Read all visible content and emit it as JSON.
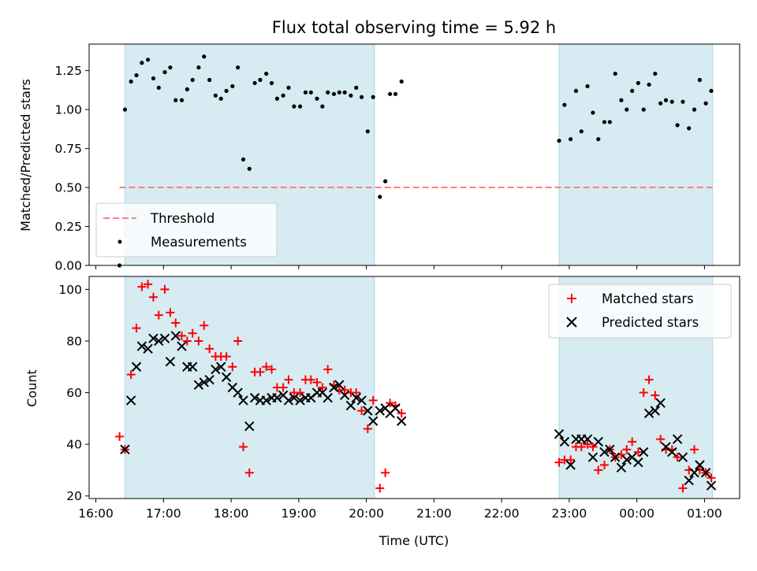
{
  "figure": {
    "title": "Flux total observing time = 5.92 h",
    "xlabel": "Time (UTC)",
    "top_ylabel": "Matched/Predicted stars",
    "bottom_ylabel": "Count"
  },
  "legend_top": {
    "threshold_label": "Threshold",
    "measurements_label": "Measurements"
  },
  "legend_bottom": {
    "matched_label": "Matched stars",
    "predicted_label": "Predicted stars"
  },
  "colors": {
    "shade": "#add8e6",
    "threshold": "#ff7f7f",
    "matched": "#ff0000",
    "predicted": "#000000",
    "measurements": "#000000"
  },
  "chart_data": [
    {
      "type": "scatter",
      "ylabel": "Matched/Predicted stars",
      "ylim": [
        0,
        1.42
      ],
      "yticks": [
        "0.00",
        "0.25",
        "0.50",
        "0.75",
        "1.00",
        "1.25"
      ],
      "xlim_hours": [
        15.9,
        25.52
      ],
      "threshold": 0.5,
      "threshold_span_hours": [
        16.35,
        25.12
      ],
      "shaded_intervals_hours": [
        [
          16.43,
          20.12
        ],
        [
          22.85,
          25.12
        ]
      ],
      "measurements": {
        "x_hours": [
          16.35,
          16.43,
          16.52,
          16.6,
          16.68,
          16.77,
          16.85,
          16.93,
          17.02,
          17.1,
          17.18,
          17.27,
          17.35,
          17.43,
          17.52,
          17.6,
          17.68,
          17.77,
          17.85,
          17.93,
          18.02,
          18.1,
          18.18,
          18.27,
          18.35,
          18.43,
          18.52,
          18.6,
          18.68,
          18.77,
          18.85,
          18.93,
          19.02,
          19.1,
          19.18,
          19.27,
          19.35,
          19.43,
          19.52,
          19.6,
          19.68,
          19.77,
          19.85,
          19.93,
          20.02,
          20.1,
          20.2,
          20.28,
          20.35,
          20.43,
          20.52,
          22.85,
          22.93,
          23.02,
          23.1,
          23.18,
          23.27,
          23.35,
          23.43,
          23.52,
          23.6,
          23.68,
          23.77,
          23.85,
          23.93,
          24.02,
          24.1,
          24.18,
          24.27,
          24.35,
          24.43,
          24.52,
          24.6,
          24.68,
          24.77,
          24.85,
          24.93,
          25.02,
          25.1
        ],
        "y": [
          0.0,
          1.0,
          1.18,
          1.22,
          1.3,
          1.32,
          1.2,
          1.14,
          1.24,
          1.27,
          1.06,
          1.06,
          1.13,
          1.19,
          1.27,
          1.34,
          1.19,
          1.09,
          1.07,
          1.12,
          1.15,
          1.27,
          0.68,
          0.62,
          1.17,
          1.19,
          1.23,
          1.17,
          1.07,
          1.09,
          1.14,
          1.02,
          1.02,
          1.11,
          1.11,
          1.07,
          1.02,
          1.11,
          1.1,
          1.11,
          1.11,
          1.09,
          1.14,
          1.08,
          0.86,
          1.08,
          0.44,
          0.54,
          1.1,
          1.1,
          1.18,
          0.8,
          1.03,
          0.81,
          1.12,
          0.86,
          1.15,
          0.98,
          0.81,
          0.92,
          0.92,
          1.23,
          1.06,
          1.0,
          1.12,
          1.17,
          1.0,
          1.16,
          1.23,
          1.04,
          1.06,
          1.05,
          0.9,
          1.05,
          0.88,
          1.0,
          1.19,
          1.04,
          1.12
        ]
      }
    },
    {
      "type": "scatter",
      "ylabel": "Count",
      "xlabel": "Time (UTC)",
      "ylim": [
        19,
        105
      ],
      "yticks": [
        "20",
        "40",
        "60",
        "80",
        "100"
      ],
      "xticks": [
        {
          "h": 16,
          "label": "16:00"
        },
        {
          "h": 17,
          "label": "17:00"
        },
        {
          "h": 18,
          "label": "18:00"
        },
        {
          "h": 19,
          "label": "19:00"
        },
        {
          "h": 20,
          "label": "20:00"
        },
        {
          "h": 21,
          "label": "21:00"
        },
        {
          "h": 22,
          "label": "22:00"
        },
        {
          "h": 23,
          "label": "23:00"
        },
        {
          "h": 24,
          "label": "00:00"
        },
        {
          "h": 25,
          "label": "01:00"
        }
      ],
      "series": [
        {
          "name": "Matched stars",
          "marker": "+",
          "x_hours": [
            16.35,
            16.43,
            16.52,
            16.6,
            16.68,
            16.77,
            16.85,
            16.93,
            17.02,
            17.1,
            17.18,
            17.27,
            17.35,
            17.43,
            17.52,
            17.6,
            17.68,
            17.77,
            17.85,
            17.93,
            18.02,
            18.1,
            18.18,
            18.27,
            18.35,
            18.43,
            18.52,
            18.6,
            18.68,
            18.77,
            18.85,
            18.93,
            19.02,
            19.1,
            19.18,
            19.27,
            19.35,
            19.43,
            19.52,
            19.6,
            19.68,
            19.77,
            19.85,
            19.93,
            20.02,
            20.1,
            20.2,
            20.28,
            20.35,
            20.43,
            20.52,
            22.85,
            22.93,
            23.02,
            23.1,
            23.18,
            23.27,
            23.35,
            23.43,
            23.52,
            23.6,
            23.68,
            23.77,
            23.85,
            23.93,
            24.02,
            24.1,
            24.18,
            24.27,
            24.35,
            24.43,
            24.52,
            24.6,
            24.68,
            24.77,
            24.85,
            24.93,
            25.02,
            25.1
          ],
          "values": [
            43,
            38,
            67,
            85,
            101,
            102,
            97,
            90,
            100,
            91,
            87,
            82,
            80,
            83,
            80,
            86,
            77,
            74,
            74,
            74,
            70,
            80,
            39,
            29,
            68,
            68,
            70,
            69,
            62,
            62,
            65,
            60,
            60,
            65,
            65,
            64,
            62,
            69,
            63,
            61,
            61,
            60,
            60,
            53,
            46,
            57,
            23,
            29,
            56,
            55,
            52,
            33,
            34,
            34,
            39,
            39,
            40,
            39,
            30,
            32,
            38,
            35,
            36,
            38,
            41,
            37,
            60,
            65,
            59,
            42,
            38,
            38,
            35,
            23,
            30,
            38,
            30,
            29,
            27
          ]
        },
        {
          "name": "Predicted stars",
          "marker": "x",
          "x_hours": [
            16.43,
            16.52,
            16.6,
            16.68,
            16.77,
            16.85,
            16.93,
            17.02,
            17.1,
            17.18,
            17.27,
            17.35,
            17.43,
            17.52,
            17.6,
            17.68,
            17.77,
            17.85,
            17.93,
            18.02,
            18.1,
            18.18,
            18.27,
            18.35,
            18.43,
            18.52,
            18.6,
            18.68,
            18.77,
            18.85,
            18.93,
            19.02,
            19.1,
            19.18,
            19.27,
            19.35,
            19.43,
            19.52,
            19.6,
            19.68,
            19.77,
            19.85,
            19.93,
            20.02,
            20.1,
            20.2,
            20.28,
            20.35,
            20.43,
            20.52,
            22.85,
            22.93,
            23.02,
            23.1,
            23.18,
            23.27,
            23.35,
            23.43,
            23.52,
            23.6,
            23.68,
            23.77,
            23.85,
            23.93,
            24.02,
            24.1,
            24.18,
            24.27,
            24.35,
            24.43,
            24.52,
            24.6,
            24.68,
            24.77,
            24.85,
            24.93,
            25.02,
            25.1
          ],
          "values": [
            38,
            57,
            70,
            78,
            77,
            81,
            80,
            81,
            72,
            82,
            78,
            70,
            70,
            63,
            64,
            65,
            69,
            70,
            66,
            62,
            60,
            57,
            47,
            58,
            57,
            57,
            58,
            58,
            59,
            57,
            58,
            57,
            58,
            58,
            60,
            60,
            58,
            62,
            63,
            59,
            55,
            58,
            57,
            53,
            49,
            53,
            54,
            52,
            54,
            49,
            44,
            41,
            32,
            42,
            42,
            42,
            35,
            41,
            37,
            38,
            35,
            31,
            34,
            35,
            33,
            37,
            52,
            53,
            56,
            39,
            37,
            42,
            35,
            26,
            29,
            32,
            29,
            24
          ]
        }
      ]
    }
  ]
}
